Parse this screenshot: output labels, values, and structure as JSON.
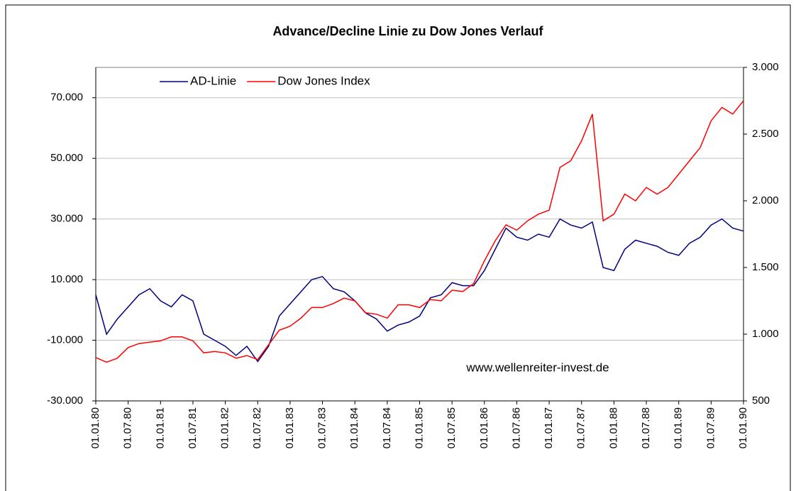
{
  "chart_data": {
    "type": "line",
    "title": "Advance/Decline Linie zu Dow Jones Verlauf",
    "annotation": "www.wellenreiter-invest.de",
    "x": [
      "01.01.80",
      "01.03.80",
      "01.05.80",
      "01.07.80",
      "01.09.80",
      "01.11.80",
      "01.01.81",
      "01.03.81",
      "01.05.81",
      "01.07.81",
      "01.09.81",
      "01.11.81",
      "01.01.82",
      "01.03.82",
      "01.05.82",
      "01.07.82",
      "01.09.82",
      "01.11.82",
      "01.01.83",
      "01.03.83",
      "01.05.83",
      "01.07.83",
      "01.09.83",
      "01.11.83",
      "01.01.84",
      "01.03.84",
      "01.05.84",
      "01.07.84",
      "01.09.84",
      "01.11.84",
      "01.01.85",
      "01.03.85",
      "01.05.85",
      "01.07.85",
      "01.09.85",
      "01.11.85",
      "01.01.86",
      "01.03.86",
      "01.05.86",
      "01.07.86",
      "01.09.86",
      "01.11.86",
      "01.01.87",
      "01.03.87",
      "01.05.87",
      "01.07.87",
      "01.09.87",
      "01.11.87",
      "01.01.88",
      "01.03.88",
      "01.05.88",
      "01.07.88",
      "01.09.88",
      "01.11.88",
      "01.01.89",
      "01.03.89",
      "01.05.89",
      "01.07.89",
      "01.09.89",
      "01.11.89",
      "01.01.90"
    ],
    "xlim": [
      "01.01.80",
      "01.01.90"
    ],
    "xticks": [
      "01.01.80",
      "01.07.80",
      "01.01.81",
      "01.07.81",
      "01.01.82",
      "01.07.82",
      "01.01.83",
      "01.07.83",
      "01.01.84",
      "01.07.84",
      "01.01.85",
      "01.07.85",
      "01.01.86",
      "01.07.86",
      "01.01.87",
      "01.07.87",
      "01.01.88",
      "01.07.88",
      "01.01.89",
      "01.07.89",
      "01.01.90"
    ],
    "series": [
      {
        "name": "AD-Linie",
        "color": "#000080",
        "axis": "y",
        "values": [
          5000,
          -8000,
          -3000,
          1000,
          5000,
          7000,
          3000,
          1000,
          5000,
          3000,
          -8000,
          -10000,
          -12000,
          -15000,
          -12000,
          -17000,
          -12000,
          -2000,
          2000,
          6000,
          10000,
          11000,
          7000,
          6000,
          3000,
          -1000,
          -3000,
          -7000,
          -5000,
          -4000,
          -2000,
          4000,
          5000,
          9000,
          8000,
          8000,
          13000,
          20000,
          27000,
          24000,
          23000,
          25000,
          24000,
          30000,
          28000,
          27000,
          29000,
          14000,
          13000,
          20000,
          23000,
          22000,
          21000,
          19000,
          18000,
          22000,
          24000,
          28000,
          30000,
          27000,
          26000
        ]
      },
      {
        "name": "Dow Jones Index",
        "color": "#ff0000",
        "axis": "y2",
        "values": [
          825,
          790,
          820,
          900,
          930,
          940,
          950,
          980,
          980,
          950,
          860,
          870,
          860,
          820,
          840,
          810,
          920,
          1030,
          1060,
          1120,
          1200,
          1200,
          1230,
          1270,
          1250,
          1160,
          1150,
          1120,
          1220,
          1220,
          1200,
          1260,
          1250,
          1330,
          1320,
          1380,
          1550,
          1700,
          1820,
          1780,
          1850,
          1900,
          1930,
          2250,
          2300,
          2450,
          2650,
          1850,
          1900,
          2050,
          2000,
          2100,
          2050,
          2100,
          2200,
          2300,
          2400,
          2600,
          2700,
          2650,
          2750
        ]
      }
    ],
    "ylim": [
      -30000,
      80000
    ],
    "yticks": [
      {
        "value": -30000,
        "label": "-30.000"
      },
      {
        "value": -10000,
        "label": "-10.000"
      },
      {
        "value": 10000,
        "label": "10.000"
      },
      {
        "value": 30000,
        "label": "30.000"
      },
      {
        "value": 50000,
        "label": "50.000"
      },
      {
        "value": 70000,
        "label": "70.000"
      }
    ],
    "y2lim": [
      500,
      3000
    ],
    "y2ticks": [
      500,
      {
        "value": 1000,
        "label": "1.000"
      },
      {
        "value": 1500,
        "label": "1.500"
      },
      {
        "value": 2000,
        "label": "2.000"
      },
      {
        "value": 2500,
        "label": "2.500"
      },
      {
        "value": 3000,
        "label": "3.000"
      }
    ],
    "grid": true
  }
}
